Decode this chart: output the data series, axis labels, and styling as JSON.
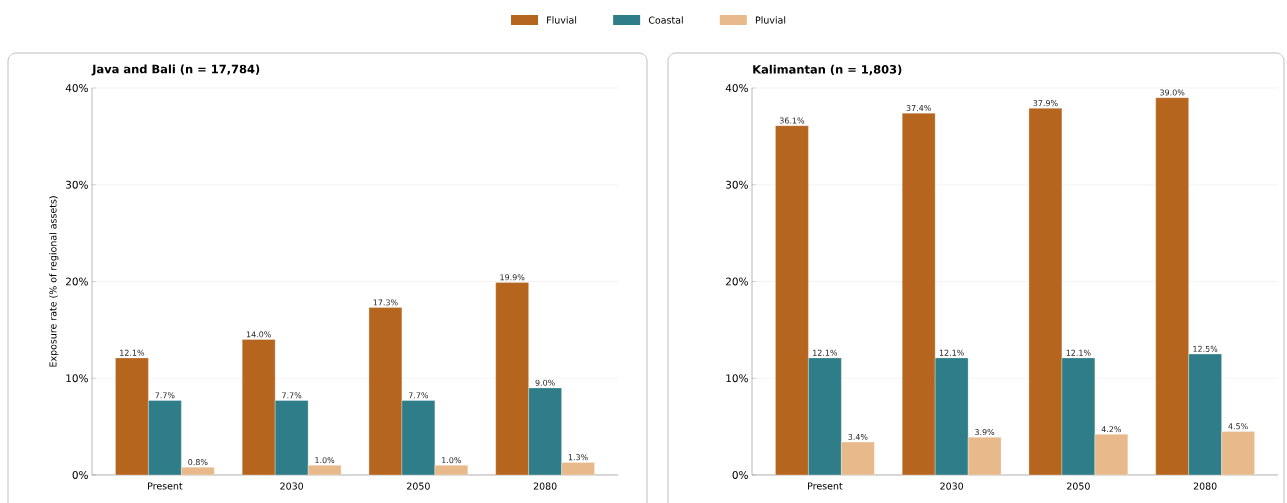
{
  "chart_data": [
    {
      "type": "bar",
      "title": "Java and Bali  (n = 17,784)",
      "ylabel": "Exposure rate (% of regional assets)",
      "categories": [
        "Present",
        "2030",
        "2050",
        "2080"
      ],
      "series": [
        {
          "name": "Fluvial",
          "color": "#b5651d",
          "values": [
            12.1,
            14.0,
            17.3,
            19.9
          ],
          "value_labels": [
            "12.1%",
            "14.0%",
            "17.3%",
            "19.9%"
          ]
        },
        {
          "name": "Coastal",
          "color": "#2e7d89",
          "values": [
            7.7,
            7.7,
            7.7,
            9.0
          ],
          "value_labels": [
            "7.7%",
            "7.7%",
            "7.7%",
            "9.0%"
          ]
        },
        {
          "name": "Pluvial",
          "color": "#e8b98a",
          "values": [
            0.8,
            1.0,
            1.0,
            1.3
          ],
          "value_labels": [
            "0.8%",
            "1.0%",
            "1.0%",
            "1.3%"
          ]
        }
      ],
      "ylim": [
        0,
        40
      ],
      "yticks": [
        {
          "value": 0,
          "label": "0%"
        },
        {
          "value": 10,
          "label": "10%"
        },
        {
          "value": 20,
          "label": "20%"
        },
        {
          "value": 30,
          "label": "30%"
        },
        {
          "value": 40,
          "label": "40%"
        }
      ],
      "grid": "y",
      "legend": "top"
    },
    {
      "type": "bar",
      "title": "Kalimantan  (n = 1,803)",
      "categories": [
        "Present",
        "2030",
        "2050",
        "2080"
      ],
      "series": [
        {
          "color": "#b5651d",
          "values": [
            36.1,
            37.4,
            37.9,
            39.0
          ],
          "value_labels": [
            "36.1%",
            "37.4%",
            "37.9%",
            "39.0%"
          ]
        },
        {
          "color": "#2e7d89",
          "values": [
            12.1,
            12.1,
            12.1,
            12.5
          ],
          "value_labels": [
            "12.1%",
            "12.1%",
            "12.1%",
            "12.5%"
          ]
        },
        {
          "color": "#e8b98a",
          "values": [
            3.4,
            3.9,
            4.2,
            4.5
          ],
          "value_labels": [
            "3.4%",
            "3.9%",
            "4.2%",
            "4.5%"
          ]
        }
      ],
      "ylim": [
        0,
        40
      ],
      "yticks": [
        {
          "value": 0,
          "label": "0%"
        },
        {
          "value": 10,
          "label": "10%"
        },
        {
          "value": 20,
          "label": "20%"
        },
        {
          "value": 30,
          "label": "30%"
        },
        {
          "value": 40,
          "label": "40%"
        }
      ],
      "grid": "y"
    }
  ]
}
